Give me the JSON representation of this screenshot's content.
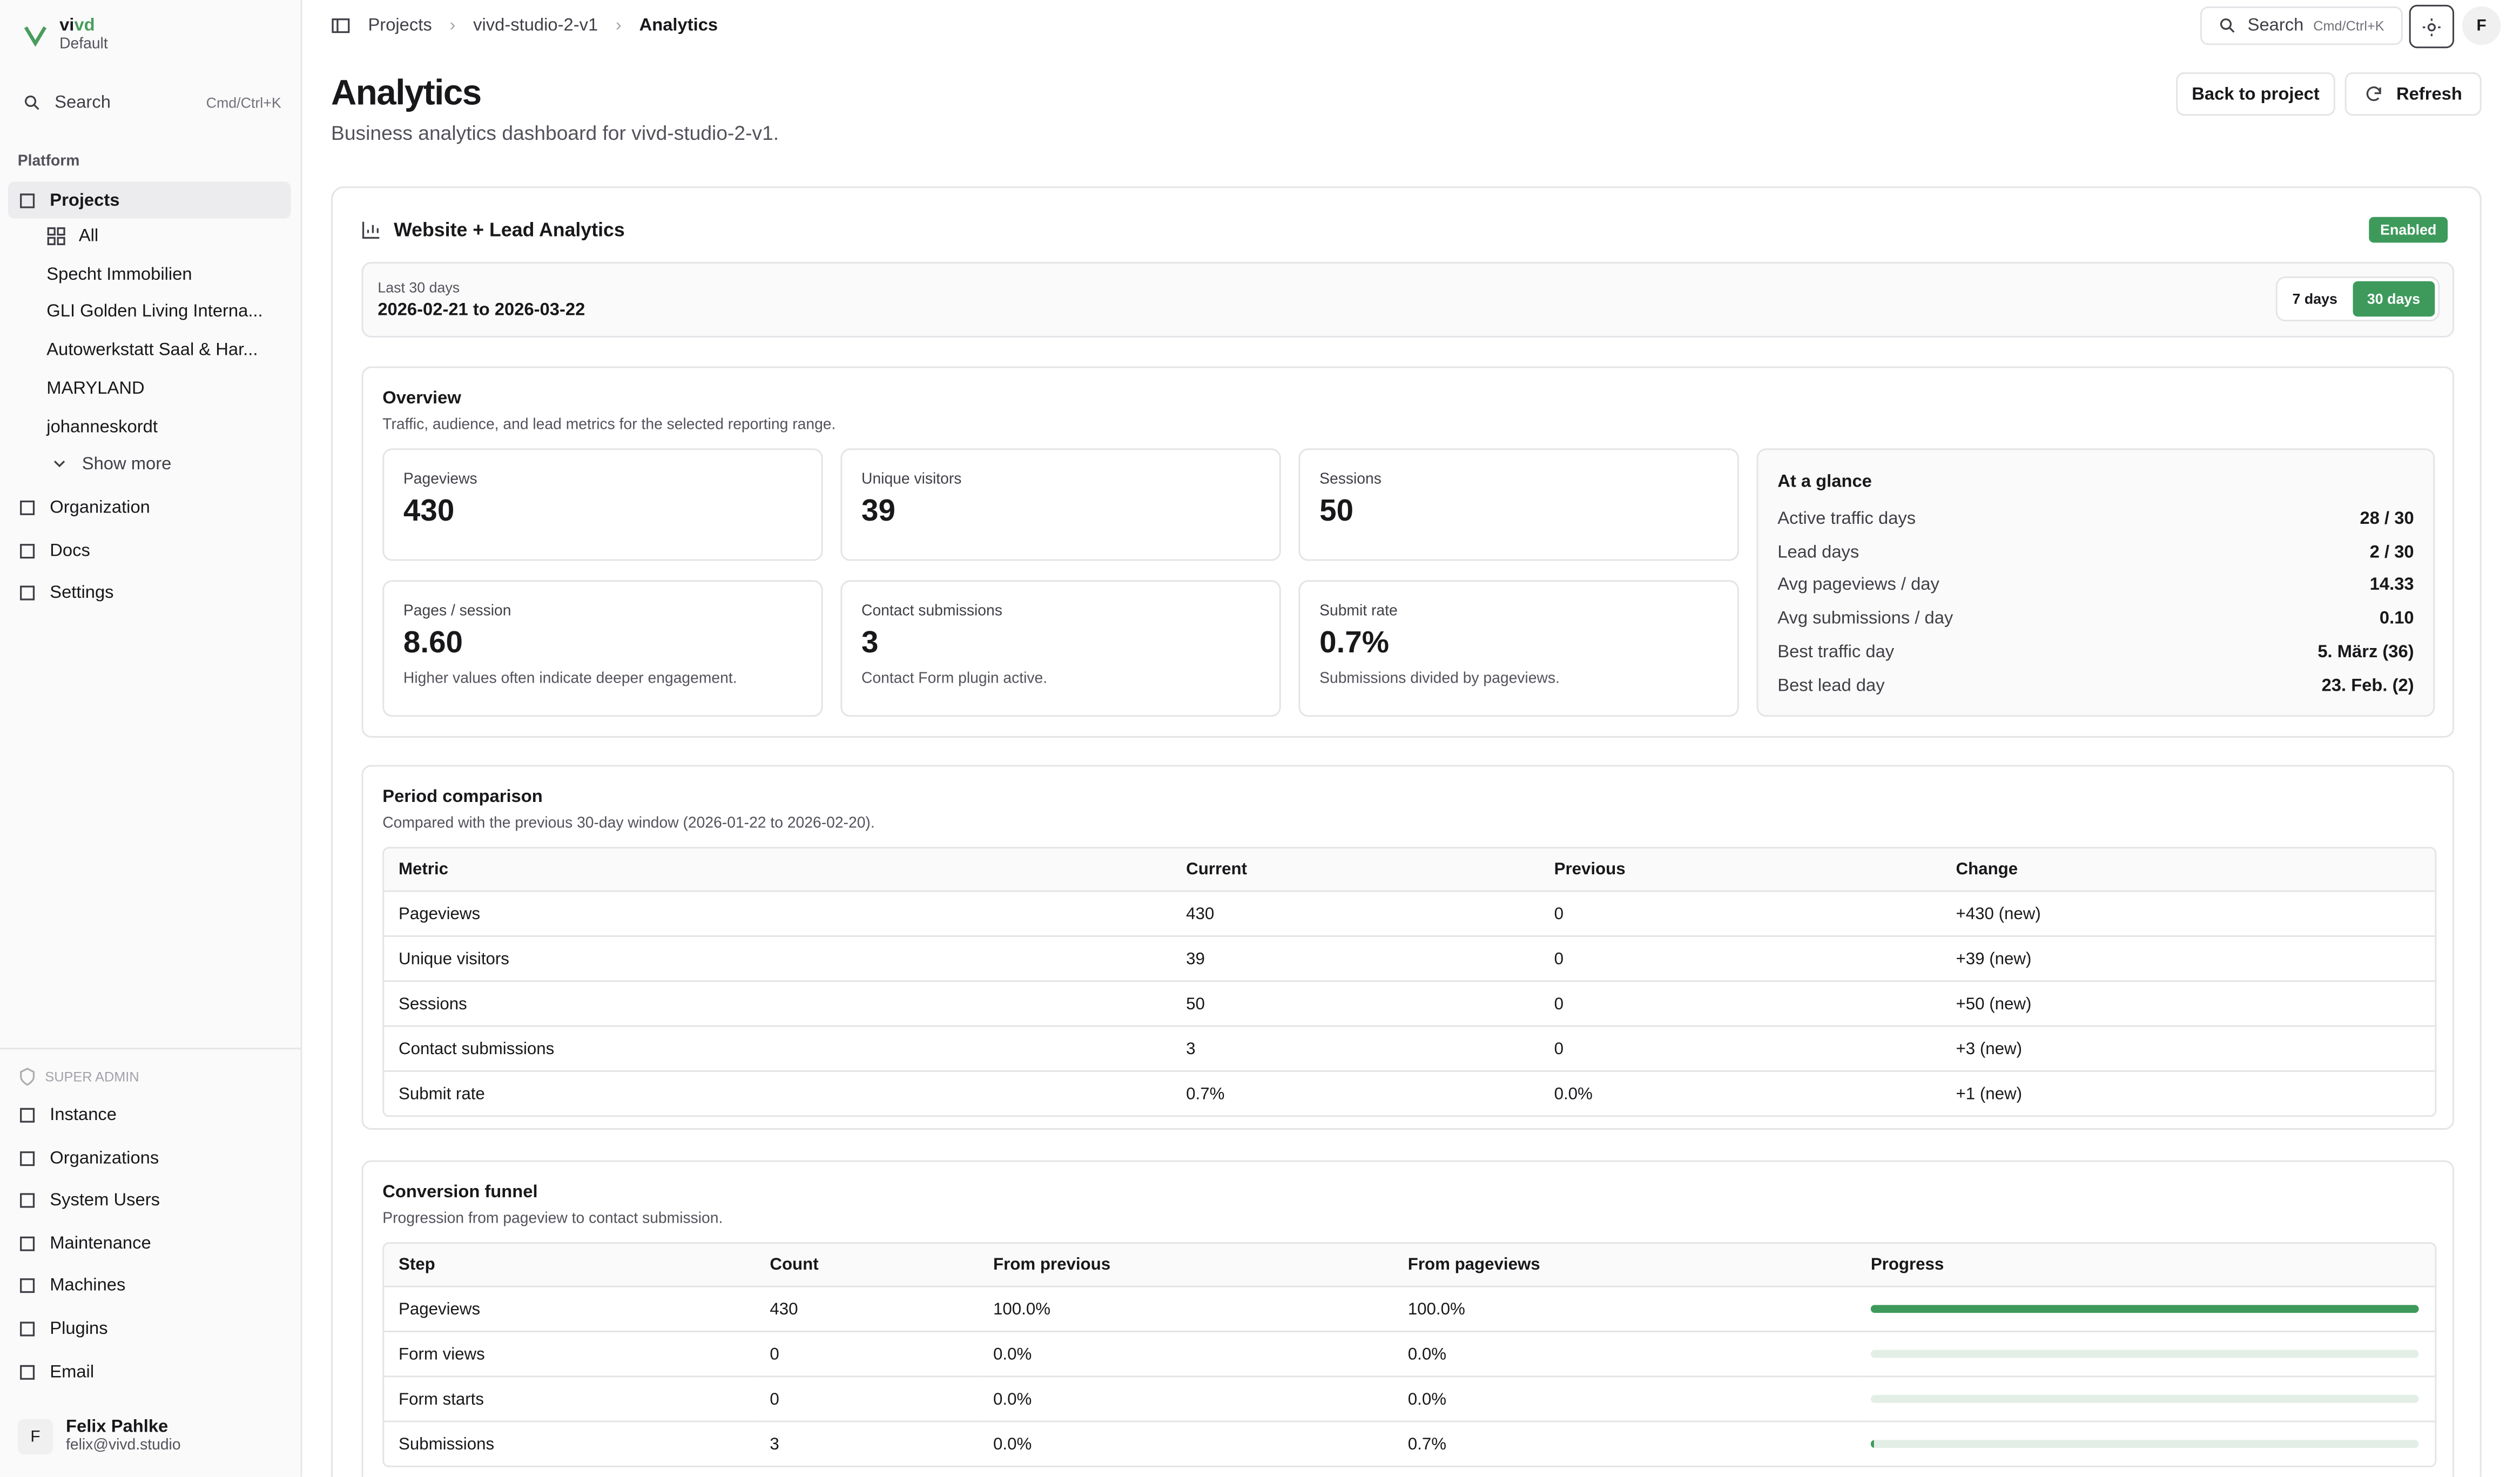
{
  "sidebar": {
    "brand": [
      "vi",
      "vd"
    ],
    "workspace": "Default",
    "search": "Search",
    "search_shortcut": "Cmd/Ctrl+K",
    "section": "Platform",
    "projects": "Projects",
    "project_items": [
      "All",
      "Specht Immobilien",
      "GLI Golden Living Interna...",
      "Autowerkstatt Saal & Har...",
      "MARYLAND",
      "johanneskordt"
    ],
    "show_more": "Show more",
    "nav": [
      "Organization",
      "Docs",
      "Settings"
    ],
    "admin_label": "SUPER ADMIN",
    "admin_items": [
      "Instance",
      "Organizations",
      "System Users",
      "Maintenance",
      "Machines",
      "Plugins",
      "Email"
    ],
    "user": {
      "initial": "F",
      "name": "Felix Pahlke",
      "email": "felix@vivd.studio"
    }
  },
  "topbar": {
    "breadcrumb": [
      "Projects",
      "vivd-studio-2-v1",
      "Analytics"
    ],
    "search": "Search",
    "search_shortcut": "Cmd/Ctrl+K",
    "avatar": "F"
  },
  "header": {
    "title": "Analytics",
    "subtitle": "Business analytics dashboard for vivd-studio-2-v1.",
    "buttons": [
      "Back to project",
      "Refresh"
    ]
  },
  "panel": {
    "title": "Website + Lead Analytics",
    "status": "Enabled",
    "range_label": "Last 30 days",
    "range": "2026-02-21 to 2026-03-22",
    "range_options": [
      "7 days",
      "30 days"
    ]
  },
  "overview": {
    "title": "Overview",
    "description": "Traffic, audience, and lead metrics for the selected reporting range.",
    "cards": [
      {
        "label": "Pageviews",
        "value": 430
      },
      {
        "label": "Unique visitors",
        "value": 39
      },
      {
        "label": "Sessions",
        "value": 50
      },
      {
        "label": "Pages / session",
        "value": "8.60",
        "note": "Higher values often indicate deeper engagement."
      },
      {
        "label": "Contact submissions",
        "value": 3,
        "note": "Contact Form plugin active."
      },
      {
        "label": "Submit rate",
        "value": "0.7%",
        "note": "Submissions divided by pageviews."
      }
    ],
    "glance": {
      "title": "At a glance",
      "rows": [
        [
          "Active traffic days",
          "28 / 30"
        ],
        [
          "Lead days",
          "2 / 30"
        ],
        [
          "Avg pageviews / day",
          "14.33"
        ],
        [
          "Avg submissions / day",
          "0.10"
        ],
        [
          "Best traffic day",
          "5. März (36)"
        ],
        [
          "Best lead day",
          "23. Feb. (2)"
        ]
      ]
    }
  },
  "comparison": {
    "title": "Period comparison",
    "description": "Compared with the previous 30-day window (2026-01-22 to 2026-02-20).",
    "columns": [
      "Metric",
      "Current",
      "Previous",
      "Change"
    ],
    "rows": [
      [
        "Pageviews",
        430,
        0,
        "+430 (new)"
      ],
      [
        "Unique visitors",
        39,
        0,
        "+39 (new)"
      ],
      [
        "Sessions",
        50,
        0,
        "+50 (new)"
      ],
      [
        "Contact submissions",
        3,
        0,
        "+3 (new)"
      ],
      [
        "Submit rate",
        "0.7%",
        "0.0%",
        "+1 (new)"
      ]
    ]
  },
  "funnel": {
    "title": "Conversion funnel",
    "description": "Progression from pageview to contact submission.",
    "columns": [
      "Step",
      "Count",
      "From previous",
      "From pageviews",
      "Progress"
    ],
    "rows": [
      {
        "step": "Pageviews",
        "count": 430,
        "from_previous": "100.0%",
        "from_pageviews": "100.0%",
        "progress": 100
      },
      {
        "step": "Form views",
        "count": 0,
        "from_previous": "0.0%",
        "from_pageviews": "0.0%",
        "progress": 0
      },
      {
        "step": "Form starts",
        "count": 0,
        "from_previous": "0.0%",
        "from_pageviews": "0.0%",
        "progress": 0
      },
      {
        "step": "Submissions",
        "count": 3,
        "from_previous": "0.0%",
        "from_pageviews": "0.7%",
        "progress": 0.7
      }
    ]
  }
}
